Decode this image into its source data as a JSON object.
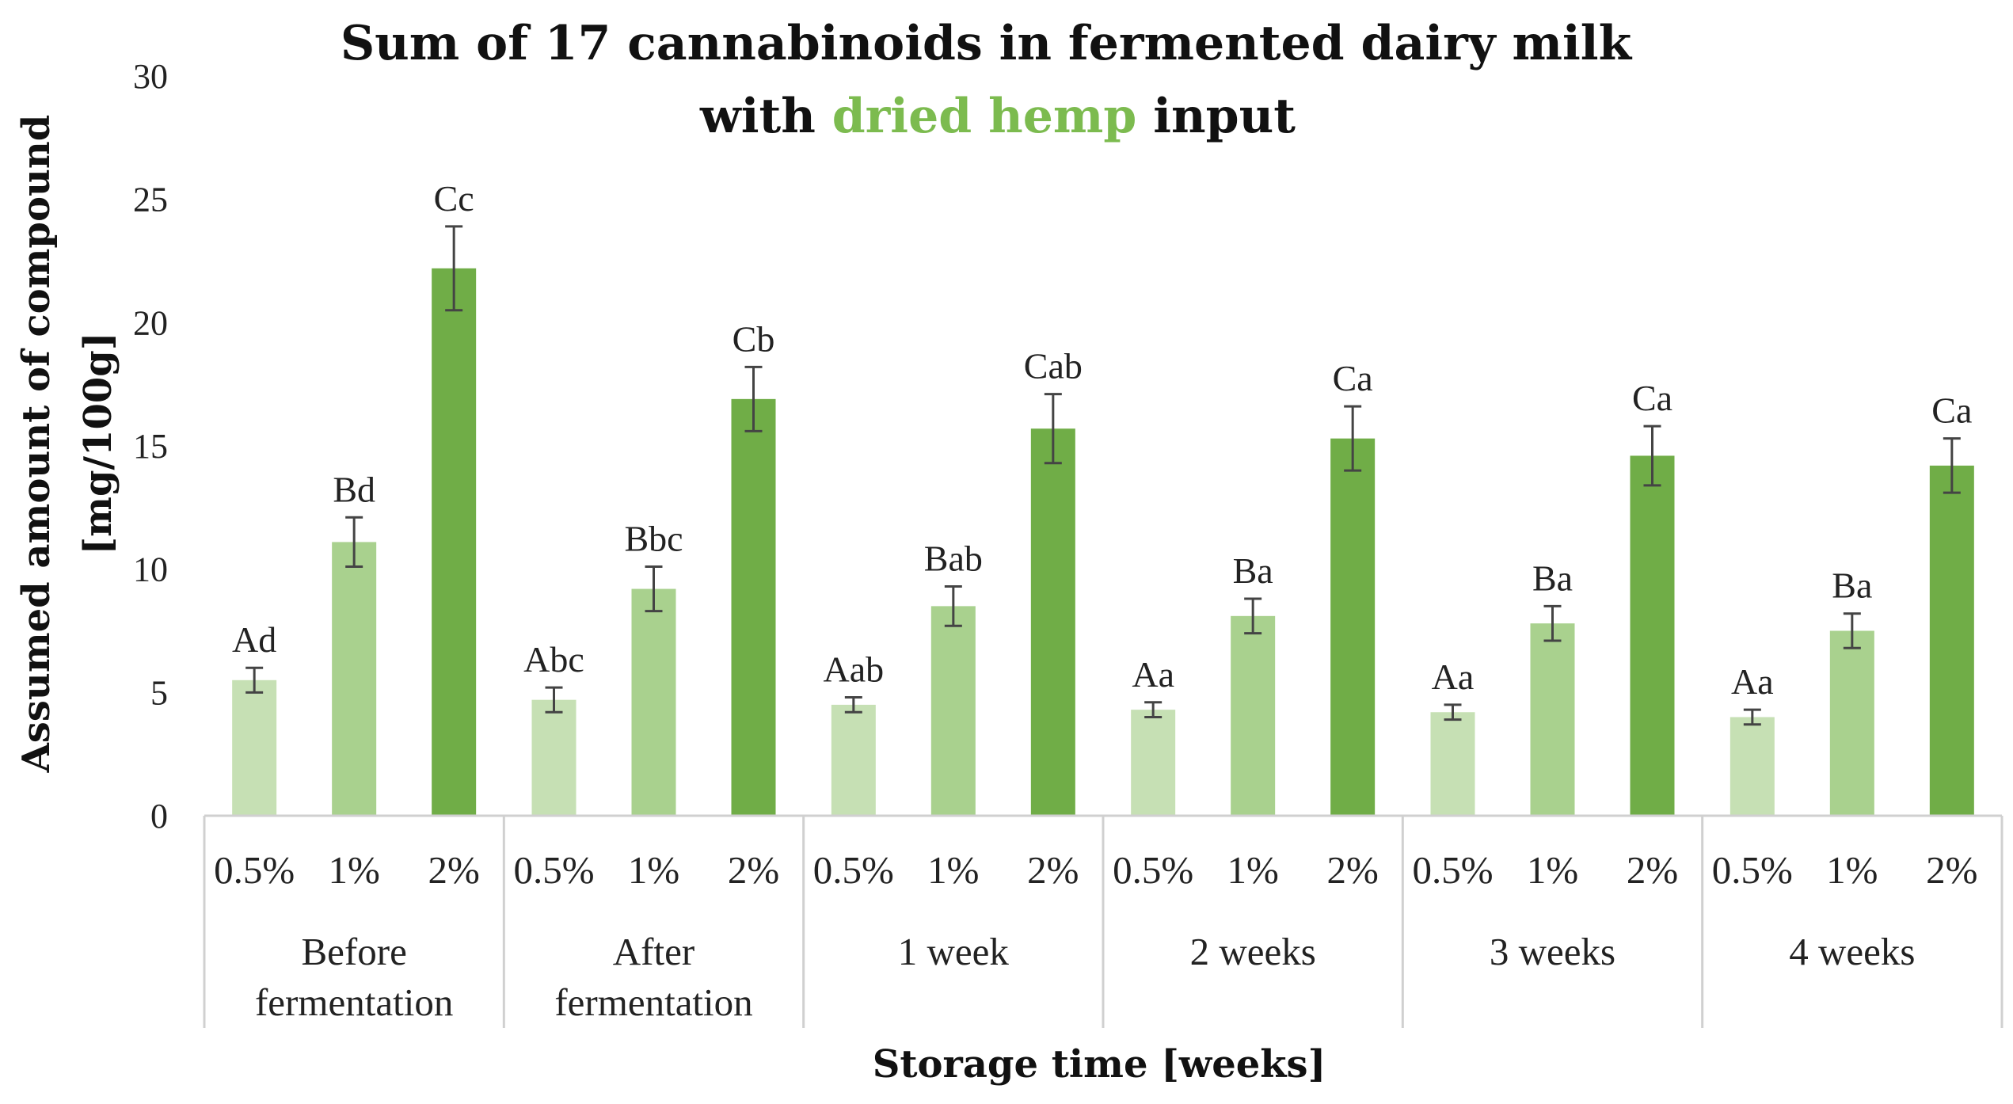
{
  "chart_data": {
    "type": "bar",
    "title_line1": "Sum of 17 cannabinoids in fermented dairy milk",
    "title_line2_pre": "with ",
    "title_line2_highlight": "dried hemp",
    "title_line2_post": " input",
    "ylabel_line1": "Assumed amount of compound",
    "ylabel_line2": "[mg/100g]",
    "xlabel": "Storage time [weeks]",
    "ylim": [
      0,
      30
    ],
    "yticks": [
      0,
      5,
      10,
      15,
      20,
      25,
      30
    ],
    "series_names": [
      "0.5%",
      "1%",
      "2%"
    ],
    "colors": [
      "#c6e0b4",
      "#a9d18e",
      "#70ad47"
    ],
    "groups": [
      {
        "label_lines": [
          "Before",
          "fermentation"
        ],
        "values": [
          5.5,
          11.1,
          22.2
        ],
        "errors": [
          0.5,
          1.0,
          1.7
        ],
        "letters": [
          "Ad",
          "Bd",
          "Cc"
        ]
      },
      {
        "label_lines": [
          "After",
          "fermentation"
        ],
        "values": [
          4.7,
          9.2,
          16.9
        ],
        "errors": [
          0.5,
          0.9,
          1.3
        ],
        "letters": [
          "Abc",
          "Bbc",
          "Cb"
        ]
      },
      {
        "label_lines": [
          "1 week"
        ],
        "values": [
          4.5,
          8.5,
          15.7
        ],
        "errors": [
          0.3,
          0.8,
          1.4
        ],
        "letters": [
          "Aab",
          "Bab",
          "Cab"
        ]
      },
      {
        "label_lines": [
          "2 weeks"
        ],
        "values": [
          4.3,
          8.1,
          15.3
        ],
        "errors": [
          0.3,
          0.7,
          1.3
        ],
        "letters": [
          "Aa",
          "Ba",
          "Ca"
        ]
      },
      {
        "label_lines": [
          "3 weeks"
        ],
        "values": [
          4.2,
          7.8,
          14.6
        ],
        "errors": [
          0.3,
          0.7,
          1.2
        ],
        "letters": [
          "Aa",
          "Ba",
          "Ca"
        ]
      },
      {
        "label_lines": [
          "4 weeks"
        ],
        "values": [
          4.0,
          7.5,
          14.2
        ],
        "errors": [
          0.3,
          0.7,
          1.1
        ],
        "letters": [
          "Aa",
          "Ba",
          "Ca"
        ]
      }
    ]
  }
}
